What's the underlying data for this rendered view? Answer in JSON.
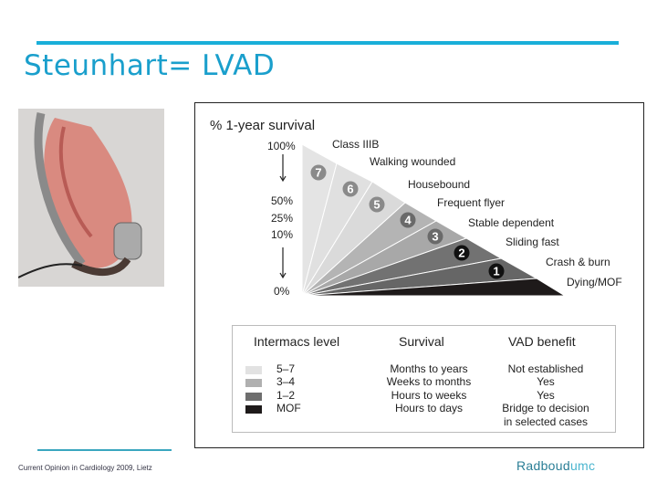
{
  "slide": {
    "title": "Steunhart= LVAD",
    "citation": "Current Opinion in Cardiology 2009, Lietz",
    "logo": {
      "name": "Radboud",
      "suffix": "umc"
    },
    "accent_color": "#19afd9"
  },
  "figure": {
    "y_title": "% 1-year survival",
    "y_labels": [
      "100%",
      "50%",
      "25%",
      "10%",
      "0%"
    ],
    "segments": [
      {
        "level": "7",
        "label": "Class IIIB",
        "color": "#e4e4e4"
      },
      {
        "level": "6",
        "label": "Walking wounded",
        "color": "#e0e0e0"
      },
      {
        "level": "5",
        "label": "Housebound",
        "color": "#dadada"
      },
      {
        "level": "4",
        "label": "Frequent flyer",
        "color": "#b4b4b4"
      },
      {
        "level": "3",
        "label": "Stable dependent",
        "color": "#a8a8a8"
      },
      {
        "level": "2",
        "label": "Sliding fast",
        "color": "#727272"
      },
      {
        "level": "1",
        "label": "Crash & burn",
        "color": "#666666"
      },
      {
        "level": "",
        "label": "Dying/MOF",
        "color": "#1e1a1a"
      }
    ],
    "legend": {
      "headers": [
        "Intermacs level",
        "Survival",
        "VAD benefit"
      ],
      "rows": [
        {
          "level": "5–7",
          "color": "#e2e2e2",
          "survival": "Months to years",
          "benefit": "Not established"
        },
        {
          "level": "3–4",
          "color": "#b0b0b0",
          "survival": "Weeks to months",
          "benefit": "Yes"
        },
        {
          "level": "1–2",
          "color": "#6e6e6e",
          "survival": "Hours to weeks",
          "benefit": "Yes"
        },
        {
          "level": "MOF",
          "color": "#1e1a1a",
          "survival": "Hours to days",
          "benefit": "Bridge to decision"
        }
      ],
      "benefit_extra": "in selected cases"
    }
  }
}
